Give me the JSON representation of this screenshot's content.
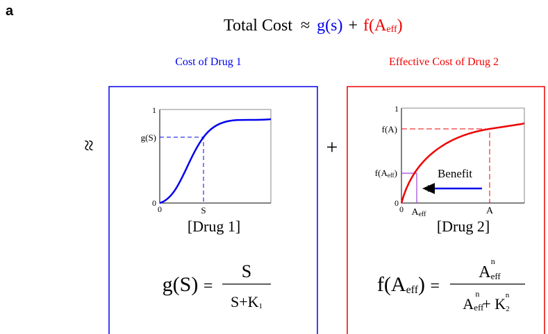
{
  "panel_label": "a",
  "header": {
    "lhs": "Total Cost",
    "approx": "≈",
    "term1": "g(s)",
    "plus": "+",
    "term2_base": "f(A",
    "term2_sub": "eff",
    "term2_close": ")"
  },
  "left_sign": "≈",
  "middle_sign": "+",
  "drug1": {
    "title": "Cost of Drug 1",
    "y_top": "1",
    "y_zero": "0",
    "x_zero": "0",
    "y_label": "g(S)",
    "x_label": "S",
    "axis_title": "[Drug 1]",
    "formula": {
      "lhs": "g(S)",
      "eq": "=",
      "numerator": "S",
      "den_base": "S+K",
      "den_sub": "1"
    }
  },
  "drug2": {
    "title": "Effective Cost of Drug 2",
    "y_top": "1",
    "y_zero": "0",
    "x_zero": "0",
    "y_label_a": "f(A)",
    "y_label_eff_base": "f(A",
    "y_label_eff_sub": "eff",
    "y_label_eff_close": ")",
    "x_label_eff_base": "A",
    "x_label_eff_sub": "eff",
    "x_label_a": "A",
    "arrow_label": "Benefit",
    "axis_title": "[Drug 2]",
    "formula": {
      "lhs_base": "f(A",
      "lhs_sub": "eff",
      "lhs_close": ")",
      "eq": "=",
      "num_base": "A",
      "num_sub": "eff",
      "num_sup": "n",
      "den_base": "A",
      "den_sub": "eff",
      "den_sup": "n",
      "den_plus": "+ K",
      "den_k_sub": "2",
      "den_k_sup": "n"
    }
  }
}
